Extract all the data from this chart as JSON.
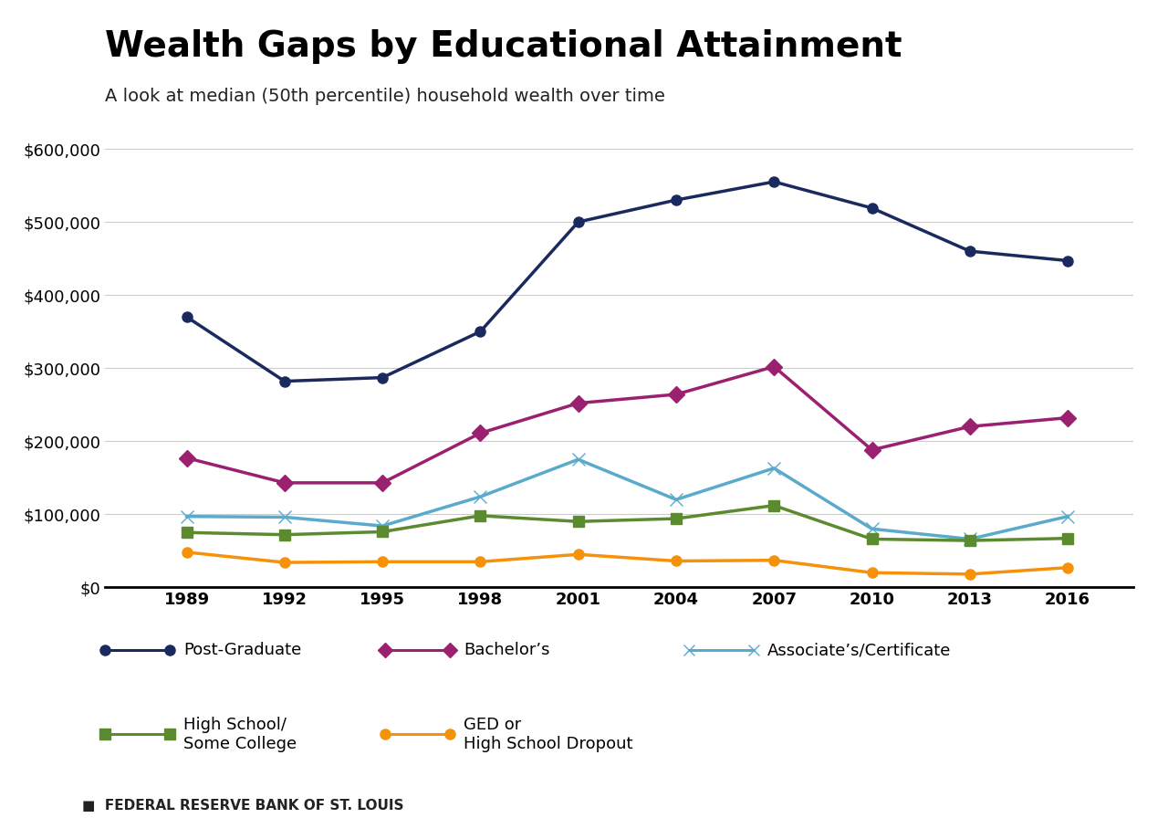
{
  "title": "Wealth Gaps by Educational Attainment",
  "subtitle": "A look at median (50th percentile) household wealth over time",
  "years": [
    1989,
    1992,
    1995,
    1998,
    2001,
    2004,
    2007,
    2010,
    2013,
    2016
  ],
  "series": {
    "Post-Graduate": {
      "values": [
        370000,
        282000,
        287000,
        350000,
        500000,
        530000,
        555000,
        519000,
        460000,
        447000
      ],
      "color": "#1a2a5e",
      "marker": "o",
      "markersize": 8,
      "linewidth": 2.5,
      "label": "Post-Graduate"
    },
    "Bachelor's": {
      "values": [
        177000,
        143000,
        143000,
        211000,
        252000,
        264000,
        302000,
        188000,
        220000,
        232000
      ],
      "color": "#9b2070",
      "marker": "D",
      "markersize": 9,
      "linewidth": 2.5,
      "label": "Bachelor’s"
    },
    "Associate's/Certificate": {
      "values": [
        97000,
        96000,
        84000,
        124000,
        175000,
        120000,
        163000,
        80000,
        66000,
        97000
      ],
      "color": "#5aaacc",
      "marker": "x",
      "markersize": 10,
      "linewidth": 2.5,
      "label": "Associate’s/Certificate"
    },
    "High School/Some College": {
      "values": [
        75000,
        72000,
        76000,
        98000,
        90000,
        94000,
        112000,
        66000,
        64000,
        67000
      ],
      "color": "#5c8a2e",
      "marker": "s",
      "markersize": 8,
      "linewidth": 2.5,
      "label": "High School/\nSome College"
    },
    "GED or High School Dropout": {
      "values": [
        48000,
        34000,
        35000,
        35000,
        45000,
        36000,
        37000,
        20000,
        18000,
        27000
      ],
      "color": "#f5920a",
      "marker": "o",
      "markersize": 8,
      "linewidth": 2.5,
      "label": "GED or\nHigh School Dropout"
    }
  },
  "series_order": [
    "Post-Graduate",
    "Bachelor's",
    "Associate's/Certificate",
    "High School/Some College",
    "GED or High School Dropout"
  ],
  "ylim": [
    0,
    620000
  ],
  "yticks": [
    0,
    100000,
    200000,
    300000,
    400000,
    500000,
    600000
  ],
  "xlim": [
    1986.5,
    2018.0
  ],
  "background_color": "#ffffff",
  "grid_color": "#cccccc",
  "source_text": "FEDERAL RESERVE BANK OF ST. LOUIS",
  "title_fontsize": 28,
  "subtitle_fontsize": 14,
  "tick_fontsize": 13,
  "legend_fontsize": 13,
  "row1_labels": [
    "Post-Graduate",
    "Bachelor’s",
    "Associate’s/Certificate"
  ],
  "row1_colors": [
    "#1a2a5e",
    "#9b2070",
    "#5aaacc"
  ],
  "row1_markers": [
    "o",
    "D",
    "x"
  ],
  "row2_labels": [
    "High School/\nSome College",
    "GED or\nHigh School Dropout"
  ],
  "row2_colors": [
    "#5c8a2e",
    "#f5920a"
  ],
  "row2_markers": [
    "s",
    "o"
  ]
}
